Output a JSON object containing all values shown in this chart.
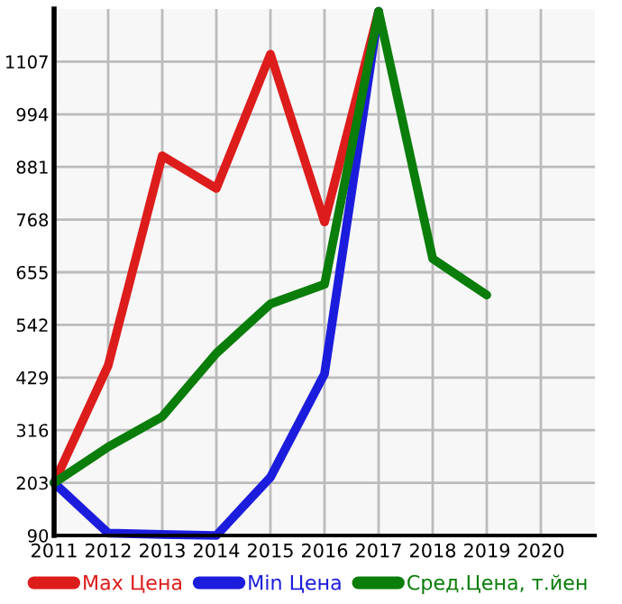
{
  "chart_data": {
    "type": "line",
    "x": [
      2011,
      2012,
      2013,
      2014,
      2015,
      2016,
      2017,
      2018,
      2019
    ],
    "series": [
      {
        "name": "Max Цена",
        "color": "#dd1c1c",
        "values": [
          203,
          455,
          905,
          835,
          1123,
          763,
          1215,
          null,
          null
        ]
      },
      {
        "name": "Min Цена",
        "color": "#1c1cdd",
        "values": [
          203,
          95,
          92,
          90,
          215,
          437,
          1215,
          null,
          null
        ]
      },
      {
        "name": "Сред.Цена, т.йен",
        "color": "#0a7d0a",
        "values": [
          203,
          280,
          345,
          481,
          587,
          629,
          1215,
          684,
          606
        ]
      }
    ],
    "xlim": [
      2011,
      2021
    ],
    "xticks": [
      2011,
      2012,
      2013,
      2014,
      2015,
      2016,
      2017,
      2018,
      2019,
      2020
    ],
    "ylim": [
      90,
      1220
    ],
    "yticks": [
      90,
      203,
      316,
      429,
      542,
      655,
      768,
      881,
      994,
      1107
    ],
    "grid": true,
    "legend": "bottom",
    "marker": "none",
    "line_style": "solid"
  }
}
